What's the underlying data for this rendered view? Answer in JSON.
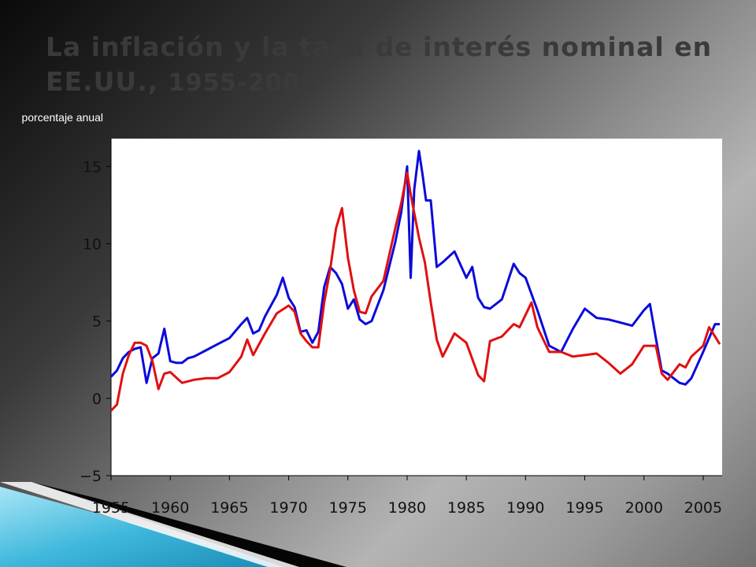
{
  "slide": {
    "title_text": "La inflación y la tasa de interés nominal en EE.UU., ",
    "title_years": "1955-2006"
  },
  "chart_data": {
    "type": "line",
    "title": "La inflación y la tasa de interés nominal en EE.UU., 1955-2006",
    "ylabel": "porcentaje anual",
    "xlabel": "",
    "xlim": [
      1955,
      2006.6
    ],
    "ylim": [
      -5,
      16.8
    ],
    "x_ticks": [
      1955,
      1960,
      1965,
      1970,
      1975,
      1980,
      1985,
      1990,
      1995,
      2000,
      2005
    ],
    "y_ticks": [
      -5,
      0,
      5,
      10,
      15
    ],
    "y_tick_labels": [
      "−5",
      "0",
      "5",
      "10",
      "15"
    ],
    "grid": false,
    "series": [
      {
        "color": "#0a0adc",
        "x": [
          1955,
          1955.5,
          1956,
          1956.5,
          1957,
          1957.5,
          1958,
          1958.5,
          1959,
          1959.5,
          1960,
          1960.5,
          1961,
          1961.5,
          1962,
          1963,
          1964,
          1965,
          1966,
          1966.5,
          1967,
          1967.5,
          1968,
          1969,
          1969.5,
          1970,
          1970.5,
          1971,
          1971.5,
          1972,
          1972.5,
          1973,
          1973.5,
          1974,
          1974.5,
          1975,
          1975.5,
          1976,
          1976.5,
          1977,
          1978,
          1979,
          1979.5,
          1980,
          1980.3,
          1980.6,
          1981,
          1981.3,
          1981.6,
          1982,
          1982.5,
          1983,
          1984,
          1985,
          1985.5,
          1986,
          1986.5,
          1987,
          1988,
          1989,
          1989.5,
          1990,
          1991,
          1992,
          1993,
          1994,
          1995,
          1996,
          1997,
          1998,
          1999,
          2000,
          2000.5,
          2001,
          2001.5,
          2002,
          2003,
          2003.5,
          2004,
          2005,
          2006,
          2006.4
        ],
        "values": [
          1.4,
          1.8,
          2.6,
          3.0,
          3.2,
          3.3,
          1.0,
          2.6,
          2.9,
          4.5,
          2.4,
          2.3,
          2.3,
          2.6,
          2.7,
          3.1,
          3.5,
          3.9,
          4.8,
          5.2,
          4.2,
          4.4,
          5.3,
          6.7,
          7.8,
          6.5,
          5.9,
          4.3,
          4.4,
          3.6,
          4.3,
          7.2,
          8.5,
          8.1,
          7.4,
          5.8,
          6.4,
          5.1,
          4.8,
          5.0,
          7.0,
          10.1,
          12.0,
          15.0,
          7.8,
          13.5,
          16.0,
          14.5,
          12.8,
          12.8,
          8.5,
          8.8,
          9.5,
          7.8,
          8.5,
          6.5,
          5.9,
          5.8,
          6.4,
          8.7,
          8.1,
          7.8,
          5.7,
          3.4,
          3.0,
          4.5,
          5.8,
          5.2,
          5.1,
          4.9,
          4.7,
          5.7,
          6.1,
          3.9,
          1.8,
          1.6,
          1.0,
          0.9,
          1.3,
          3.0,
          4.8,
          4.8
        ]
      },
      {
        "color": "#e01010",
        "x": [
          1955,
          1955.5,
          1956,
          1956.5,
          1957,
          1957.5,
          1958,
          1958.5,
          1959,
          1959.5,
          1960,
          1961,
          1962,
          1963,
          1964,
          1965,
          1966,
          1966.5,
          1967,
          1968,
          1969,
          1970,
          1970.5,
          1971,
          1971.5,
          1972,
          1972.5,
          1973,
          1973.5,
          1974,
          1974.5,
          1975,
          1975.5,
          1976,
          1976.5,
          1977,
          1978,
          1979,
          1979.5,
          1980,
          1980.3,
          1981,
          1981.5,
          1982,
          1982.5,
          1983,
          1984,
          1985,
          1986,
          1986.5,
          1987,
          1988,
          1989,
          1989.5,
          1990,
          1990.5,
          1991,
          1992,
          1993,
          1994,
          1995,
          1996,
          1997,
          1998,
          1999,
          2000,
          2001,
          2001.5,
          2002,
          2003,
          2003.5,
          2004,
          2005,
          2005.5,
          2006,
          2006.4
        ],
        "values": [
          -0.8,
          -0.4,
          1.6,
          2.8,
          3.6,
          3.6,
          3.4,
          2.4,
          0.6,
          1.6,
          1.7,
          1.0,
          1.2,
          1.3,
          1.3,
          1.7,
          2.7,
          3.8,
          2.8,
          4.2,
          5.5,
          6.0,
          5.6,
          4.2,
          3.7,
          3.3,
          3.3,
          6.2,
          8.3,
          11.0,
          12.3,
          9.1,
          7.0,
          5.6,
          5.5,
          6.6,
          7.6,
          11.0,
          12.6,
          14.6,
          13.2,
          10.4,
          8.8,
          6.2,
          3.8,
          2.7,
          4.2,
          3.6,
          1.5,
          1.1,
          3.7,
          4.0,
          4.8,
          4.6,
          5.4,
          6.2,
          4.6,
          3.0,
          3.0,
          2.7,
          2.8,
          2.9,
          2.3,
          1.6,
          2.2,
          3.4,
          3.4,
          1.6,
          1.2,
          2.2,
          2.0,
          2.7,
          3.4,
          4.6,
          4.0,
          3.5
        ]
      }
    ]
  }
}
